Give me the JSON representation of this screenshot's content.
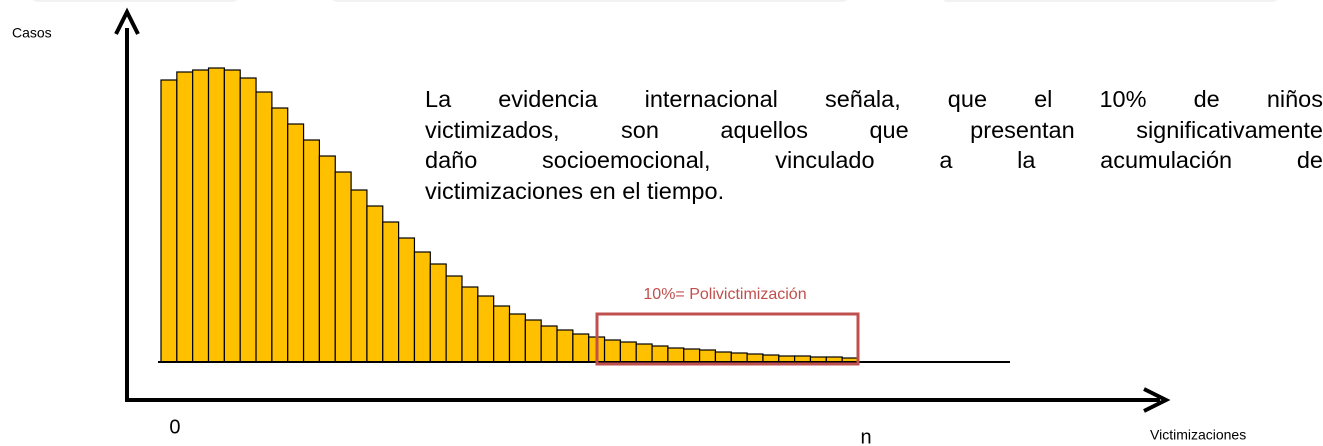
{
  "chart_data": {
    "type": "bar",
    "y_label": "Casos",
    "x_label": "Victimizaciones",
    "annotation": "10%= Polivictimización",
    "text_lines": [
      "La evidencia internacional señala, que el 10% de niños",
      "victimizados, son aquellos que presentan significativamente",
      "daño socioemocional, vinculado a la acumulación de",
      "victimizaciones en el tiempo."
    ],
    "categories": [
      "0",
      null,
      null,
      null,
      null,
      null,
      null,
      null,
      null,
      null,
      null,
      null,
      null,
      null,
      null,
      null,
      null,
      null,
      null,
      null,
      null,
      null,
      null,
      null,
      null,
      null,
      null,
      null,
      null,
      null,
      null,
      null,
      null,
      null,
      null,
      null,
      null,
      null,
      null,
      null,
      null,
      null,
      null,
      "n"
    ],
    "values": [
      282,
      290,
      292,
      294,
      292,
      284,
      270,
      254,
      238,
      222,
      206,
      190,
      172,
      156,
      140,
      124,
      110,
      98,
      86,
      75,
      66,
      56,
      48,
      42,
      36,
      32,
      28,
      25,
      22,
      20,
      18,
      16,
      14,
      13,
      12,
      10,
      9,
      8,
      7,
      6,
      6,
      5,
      5,
      4
    ],
    "color": "#ffc000",
    "ylim": [
      0,
      300
    ]
  }
}
